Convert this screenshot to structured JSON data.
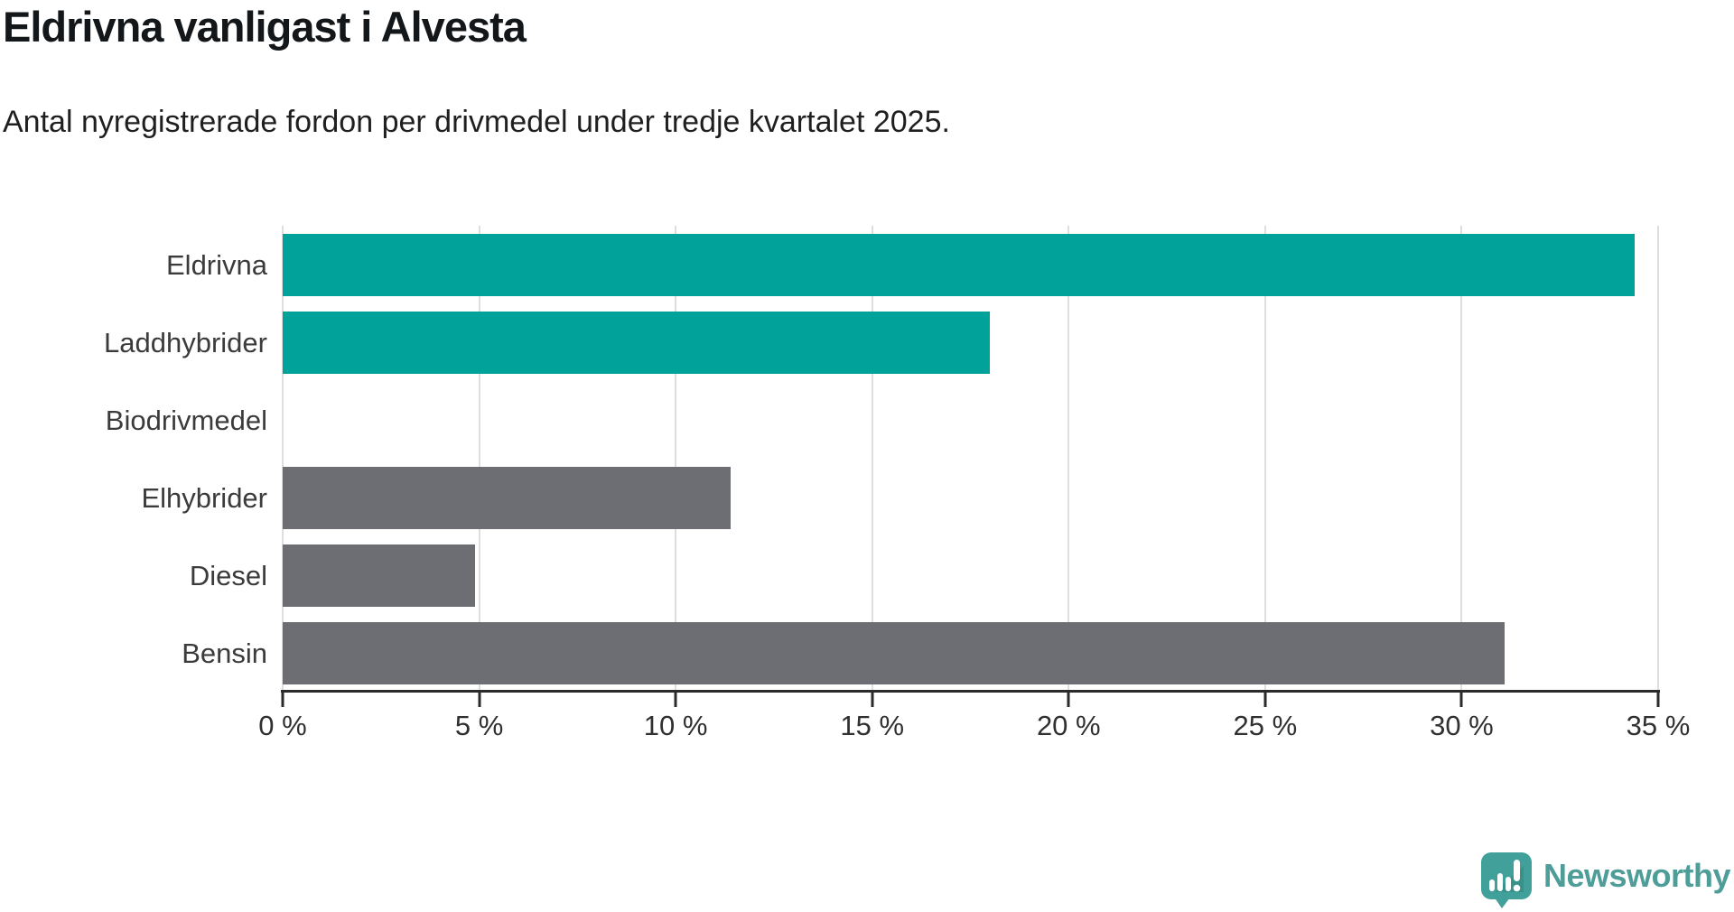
{
  "title": "Eldrivna vanligast i Alvesta",
  "subtitle": "Antal nyregistrerade fordon per drivmedel under tredje kvartalet 2025.",
  "colors": {
    "teal": "#00a29a",
    "gray": "#6d6e73",
    "axis": "#2b2b2b",
    "grid": "#dedede",
    "label": "#3b3b3b",
    "brand": "#4f9d99"
  },
  "chart_data": {
    "type": "bar",
    "orientation": "horizontal",
    "title": "Eldrivna vanligast i Alvesta",
    "subtitle": "Antal nyregistrerade fordon per drivmedel under tredje kvartalet 2025.",
    "categories": [
      "Eldrivna",
      "Laddhybrider",
      "Biodrivmedel",
      "Elhybrider",
      "Diesel",
      "Bensin"
    ],
    "values": [
      34.4,
      18.0,
      0,
      11.4,
      4.9,
      31.1
    ],
    "bar_colors": [
      "#00a29a",
      "#00a29a",
      "#00a29a",
      "#6d6e73",
      "#6d6e73",
      "#6d6e73"
    ],
    "unit": "%",
    "xlim": [
      0,
      35
    ],
    "x_tick_values": [
      0,
      5,
      10,
      15,
      20,
      25,
      30,
      35
    ],
    "x_tick_labels": [
      "0 %",
      "5 %",
      "10 %",
      "15 %",
      "20 %",
      "25 %",
      "30 %",
      "35 %"
    ],
    "grid": true,
    "legend": false
  },
  "footer": {
    "brand": "Newsworthy"
  }
}
